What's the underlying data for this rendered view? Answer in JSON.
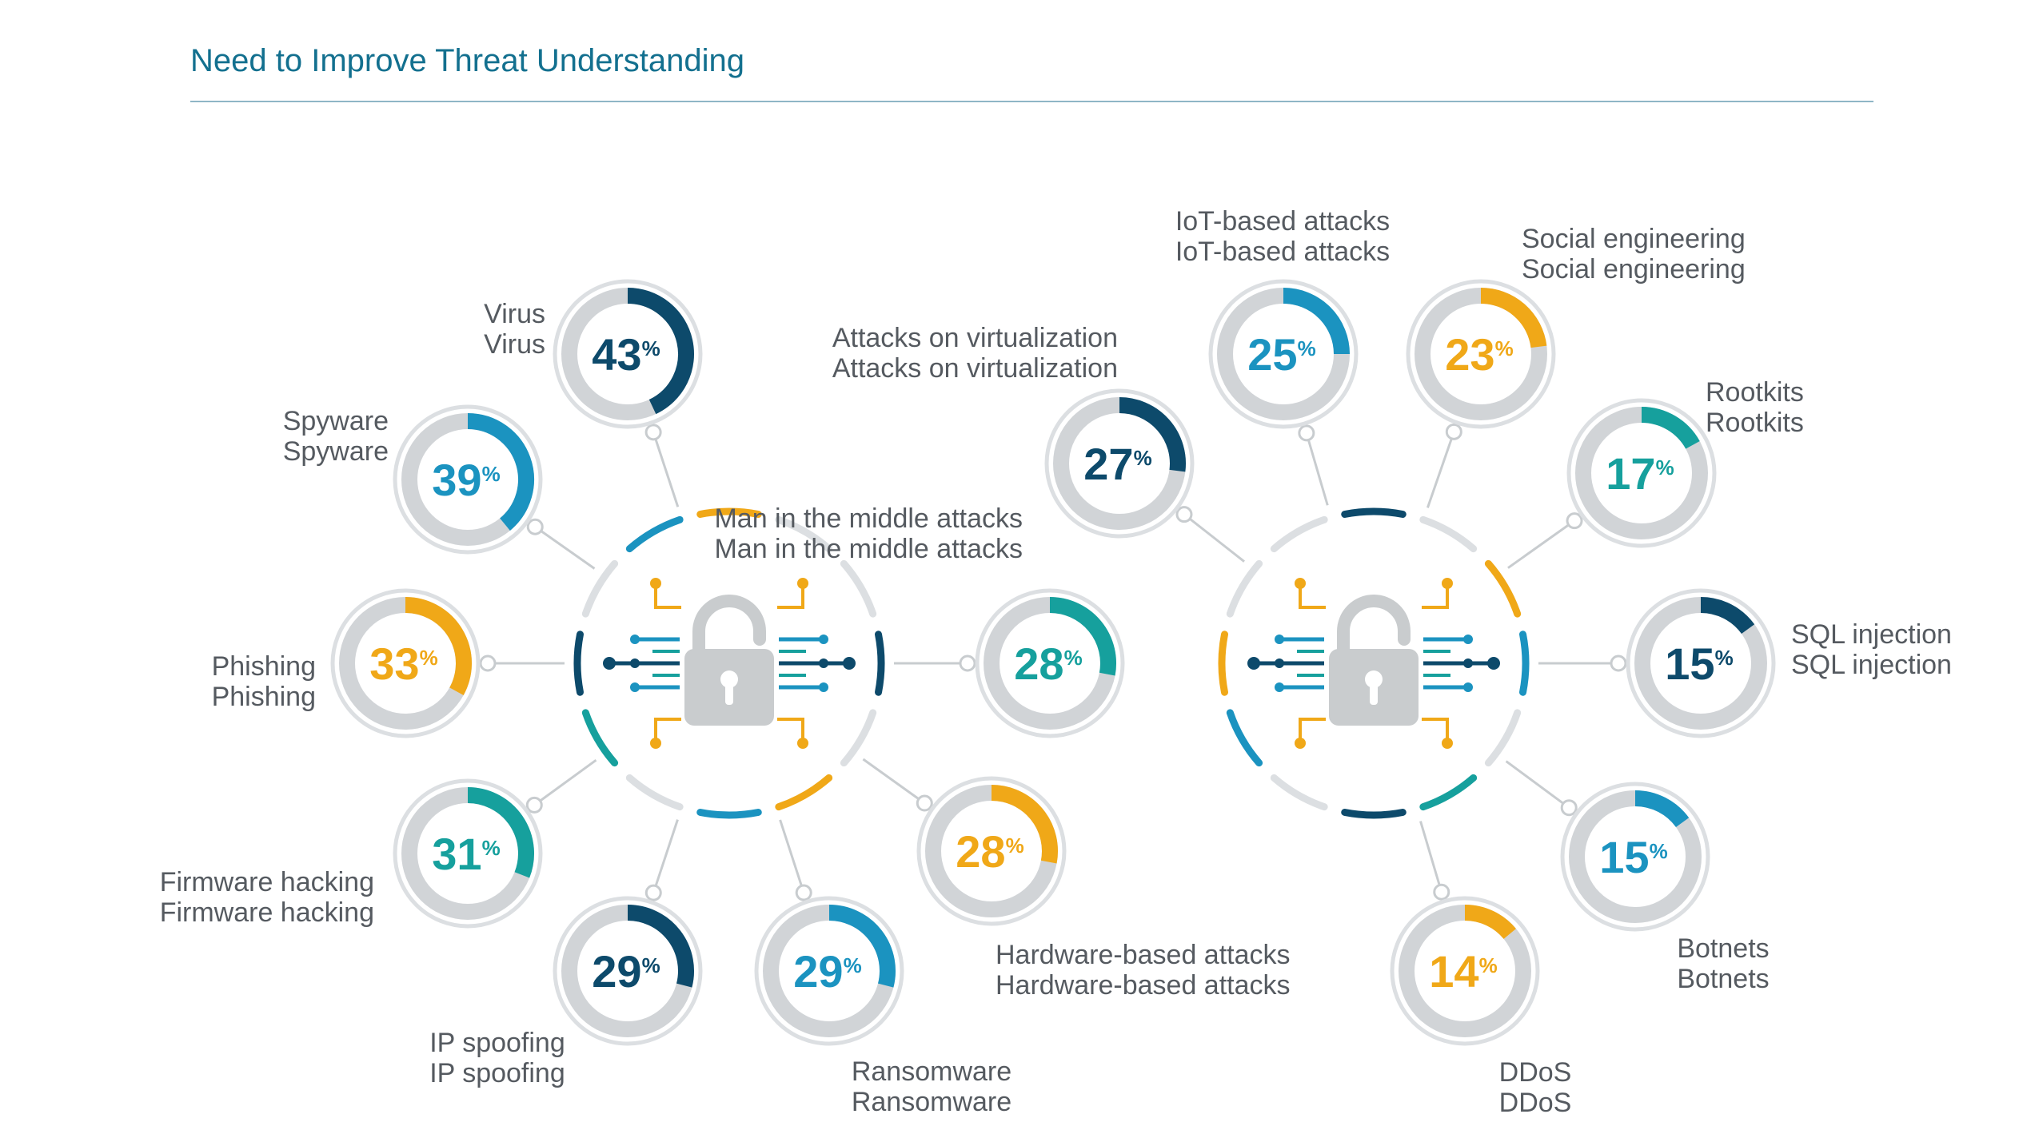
{
  "header": {
    "title": "Need to Improve Threat Understanding"
  },
  "colors": {
    "navy": "#0d4a6b",
    "blue": "#1b93c0",
    "teal": "#16a09d",
    "gold": "#f0a818",
    "track": "#d1d4d7",
    "ring": "#dcdfe2",
    "line": "#c8cccf",
    "title": "#13708f"
  },
  "chart_data": [
    {
      "type": "pie",
      "title": "",
      "hub_icon": "padlock-circuit-icon",
      "slices": [
        {
          "label": "Virus",
          "value": 43,
          "color": "navy"
        },
        {
          "label": "Spyware",
          "value": 39,
          "color": "blue"
        },
        {
          "label": "Phishing",
          "value": 33,
          "color": "gold"
        },
        {
          "label": "Firmware hacking",
          "value": 31,
          "color": "teal"
        },
        {
          "label": "IP spoofing",
          "value": 29,
          "color": "navy"
        },
        {
          "label": "Ransomware",
          "value": 29,
          "color": "blue"
        },
        {
          "label": "Hardware-based attacks",
          "value": 28,
          "color": "gold"
        },
        {
          "label": "Man in the middle attacks",
          "value": 28,
          "color": "teal"
        }
      ]
    },
    {
      "type": "pie",
      "title": "",
      "hub_icon": "padlock-circuit-icon",
      "slices": [
        {
          "label": "Attacks on virtualization",
          "value": 27,
          "color": "navy"
        },
        {
          "label": "IoT-based attacks",
          "value": 25,
          "color": "blue"
        },
        {
          "label": "Social engineering",
          "value": 23,
          "color": "gold"
        },
        {
          "label": "Rootkits",
          "value": 17,
          "color": "teal"
        },
        {
          "label": "SQL injection",
          "value": 15,
          "color": "navy"
        },
        {
          "label": "Botnets",
          "value": 15,
          "color": "blue"
        },
        {
          "label": "DDoS",
          "value": 14,
          "color": "gold"
        }
      ]
    }
  ]
}
